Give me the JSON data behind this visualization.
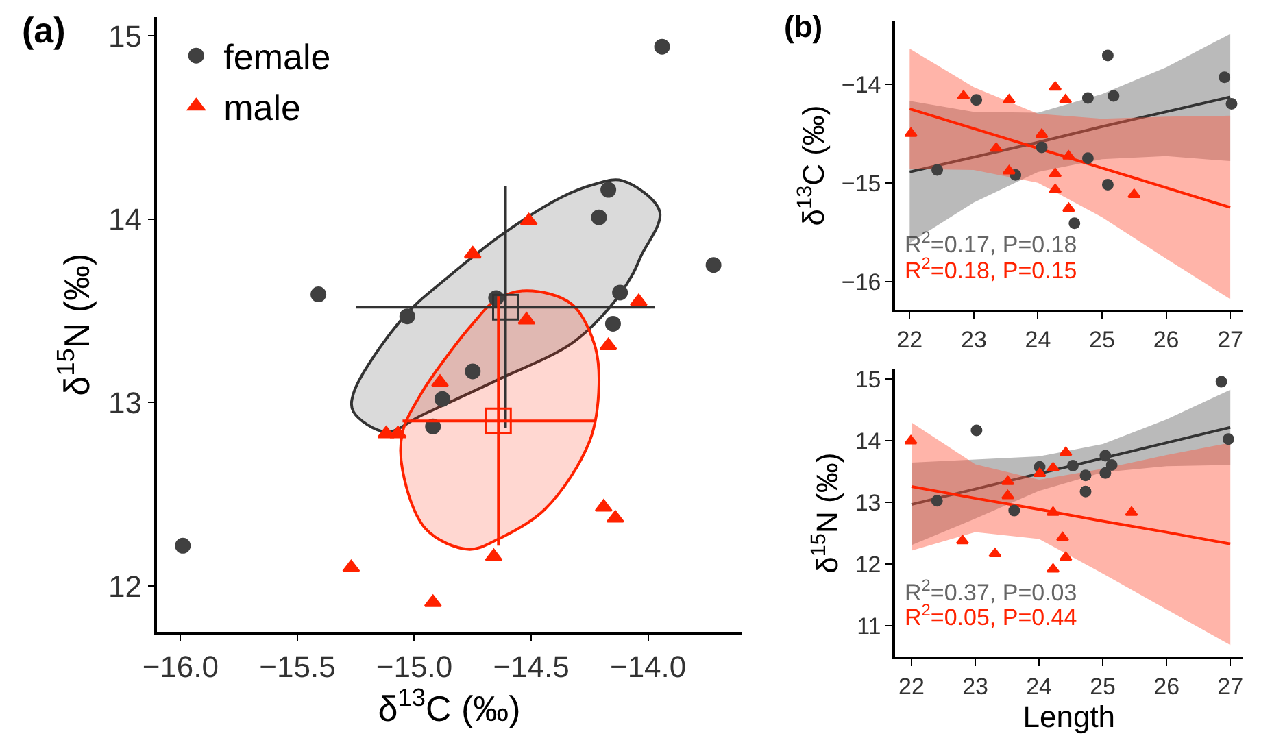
{
  "chart_data": [
    {
      "type": "scatter",
      "title": "(a)",
      "xlabel": "δ$^{13}$C (‰)",
      "ylabel": "δ$^{15}$N (‰)",
      "legend": "top left",
      "xlim": [
        -16.1,
        -13.6
      ],
      "ylim": [
        11.75,
        15.1
      ],
      "xticks": [
        {
          "value": -16,
          "label": "−16.0"
        },
        {
          "value": -15.5,
          "label": "−15.5"
        },
        {
          "value": -15,
          "label": "−15.0"
        },
        {
          "value": -14.5,
          "label": "−14.5"
        },
        {
          "value": -14,
          "label": "−14.0"
        }
      ],
      "yticks": [
        12,
        13,
        14,
        15
      ],
      "series": [
        {
          "type": "area",
          "color": "#333333",
          "x": [
            -14.11,
            -13.95,
            -14.03,
            -14.07,
            -14.17,
            -14.33,
            -14.65,
            -14.97,
            -15.12,
            -15.26,
            -15.26,
            -15.05,
            -14.85,
            -14.61,
            -14.37,
            -14.23,
            -14.11
          ],
          "values": [
            14.21,
            14.04,
            13.8,
            13.69,
            13.51,
            13.32,
            13.12,
            12.93,
            12.84,
            12.95,
            13.05,
            13.46,
            13.69,
            13.93,
            14.12,
            14.19,
            14.21
          ]
        },
        {
          "type": "area",
          "color": "#ff2200",
          "x": [
            -14.52,
            -14.33,
            -14.23,
            -14.21,
            -14.25,
            -14.44,
            -14.65,
            -14.77,
            -14.95,
            -15.05,
            -15.05,
            -14.97,
            -14.85,
            -14.75,
            -14.65,
            -14.52
          ],
          "values": [
            13.61,
            13.54,
            13.32,
            13.1,
            12.79,
            12.42,
            12.25,
            12.2,
            12.31,
            12.63,
            12.84,
            13.05,
            13.27,
            13.43,
            13.56,
            13.61
          ]
        },
        {
          "name": "female",
          "color": "#404040",
          "marker": "circle",
          "x": [
            -13.94,
            -14.17,
            -14.21,
            -13.72,
            -15.41,
            -14.12,
            -15.03,
            -14.65,
            -14.15,
            -14.75,
            -14.88,
            -14.92,
            -15.99
          ],
          "values": [
            14.94,
            14.16,
            14.01,
            13.75,
            13.59,
            13.6,
            13.47,
            13.57,
            13.43,
            13.17,
            13.02,
            12.87,
            12.22
          ]
        },
        {
          "name": "male",
          "color": "#ff2200",
          "marker": "triangle",
          "x": [
            -14.51,
            -14.75,
            -14.04,
            -14.52,
            -14.17,
            -14.89,
            -15.12,
            -15.07,
            -14.19,
            -14.14,
            -14.66,
            -15.27,
            -14.92
          ],
          "values": [
            13.99,
            13.81,
            13.55,
            13.45,
            13.31,
            13.11,
            12.83,
            12.83,
            12.43,
            12.37,
            12.16,
            12.1,
            11.91
          ]
        },
        {
          "color": "#333333",
          "marker": "square",
          "x": [
            -14.61
          ],
          "values": [
            13.52
          ],
          "errors": [
            0.66
          ],
          "xerrors": [
            0.64
          ]
        },
        {
          "color": "#ff2200",
          "marker": "square",
          "x": [
            -14.64
          ],
          "values": [
            12.9
          ],
          "errors": [
            0.68
          ],
          "xerrors": [
            0.41
          ]
        }
      ]
    },
    {
      "type": "scatter",
      "title": "(b)",
      "ylabel": "δ$^{13}$C (‰)",
      "xlim": [
        21.77,
        27.2
      ],
      "ylim": [
        -16.29,
        -13.36
      ],
      "xticks": [
        22,
        23,
        24,
        25,
        26,
        27
      ],
      "yticks": [
        {
          "value": -16,
          "label": "−16"
        },
        {
          "value": -15,
          "label": "−15"
        },
        {
          "value": -14,
          "label": "−14"
        }
      ],
      "annotations": [
        "R$^{2}$=0.17, P=0.18",
        "R$^{2}$=0.18, P=0.15"
      ],
      "series": [
        {
          "type": "line",
          "color": "#333333",
          "x": [
            22,
            23,
            24,
            25,
            26,
            27
          ],
          "values": [
            -14.89,
            -14.74,
            -14.59,
            -14.43,
            -14.28,
            -14.13
          ],
          "lower": [
            -15.61,
            -15.2,
            -14.89,
            -14.76,
            -14.73,
            -14.78
          ],
          "upper": [
            -14.17,
            -14.28,
            -14.29,
            -14.1,
            -13.83,
            -13.49
          ]
        },
        {
          "type": "line",
          "color": "#ff2200",
          "x": [
            22,
            23,
            24,
            25,
            26,
            27
          ],
          "values": [
            -14.25,
            -14.45,
            -14.65,
            -14.85,
            -15.05,
            -15.25
          ],
          "lower": [
            -14.86,
            -14.87,
            -15.0,
            -15.35,
            -15.77,
            -16.18
          ],
          "upper": [
            -13.64,
            -14.03,
            -14.3,
            -14.35,
            -14.33,
            -14.32
          ]
        },
        {
          "color": "#404040",
          "marker": "circle",
          "x": [
            22.43,
            23.04,
            23.65,
            24.06,
            24.57,
            24.78,
            24.78,
            25.09,
            25.09,
            25.18,
            26.91,
            27.02
          ],
          "values": [
            -14.87,
            -14.16,
            -14.92,
            -14.64,
            -15.41,
            -14.14,
            -14.75,
            -13.71,
            -15.02,
            -14.12,
            -13.93,
            -14.2
          ]
        },
        {
          "color": "#ff2200",
          "marker": "triangle",
          "x": [
            22.02,
            22.84,
            23.35,
            23.55,
            23.55,
            24.06,
            24.27,
            24.27,
            24.27,
            24.43,
            24.48,
            24.48,
            25.5
          ],
          "values": [
            -14.5,
            -14.12,
            -14.65,
            -14.16,
            -14.88,
            -14.51,
            -14.03,
            -14.91,
            -15.07,
            -14.16,
            -14.73,
            -15.26,
            -15.12
          ]
        }
      ]
    },
    {
      "type": "scatter",
      "xlabel": "Length",
      "ylabel": "δ$^{15}$N (‰)",
      "xlim": [
        21.74,
        27.2
      ],
      "ylim": [
        10.5,
        15.16
      ],
      "xticks": [
        22,
        23,
        24,
        25,
        26,
        27
      ],
      "yticks": [
        11,
        12,
        13,
        14,
        15
      ],
      "annotations": [
        "R$^{2}$=0.37, P=0.03",
        "R$^{2}$=0.05, P=0.44"
      ],
      "series": [
        {
          "type": "line",
          "color": "#333333",
          "x": [
            22,
            23,
            24,
            25,
            26,
            27
          ],
          "values": [
            12.97,
            13.22,
            13.47,
            13.72,
            13.97,
            14.22
          ],
          "lower": [
            12.31,
            12.74,
            13.19,
            13.49,
            13.59,
            13.61
          ],
          "upper": [
            13.65,
            13.7,
            13.75,
            13.95,
            14.35,
            14.83
          ]
        },
        {
          "type": "line",
          "color": "#ff2200",
          "x": [
            22,
            23,
            24,
            25,
            26,
            27
          ],
          "values": [
            13.26,
            13.07,
            12.89,
            12.7,
            12.52,
            12.33
          ],
          "lower": [
            12.22,
            12.52,
            12.41,
            11.85,
            11.27,
            10.69
          ],
          "upper": [
            14.3,
            13.62,
            13.37,
            13.55,
            13.77,
            13.97
          ]
        },
        {
          "color": "#404040",
          "marker": "circle",
          "x": [
            22.4,
            23.02,
            23.61,
            24.01,
            24.53,
            24.73,
            24.73,
            25.04,
            25.04,
            25.14,
            26.86,
            26.97
          ],
          "values": [
            13.03,
            14.17,
            12.87,
            13.58,
            13.6,
            13.44,
            13.18,
            13.76,
            13.48,
            13.61,
            14.96,
            14.03
          ]
        },
        {
          "color": "#ff2200",
          "marker": "triangle",
          "x": [
            21.99,
            22.8,
            23.31,
            23.51,
            23.51,
            24.01,
            24.22,
            24.22,
            24.22,
            24.37,
            24.42,
            24.42,
            25.45
          ],
          "values": [
            14.0,
            12.38,
            12.17,
            13.34,
            13.11,
            13.47,
            13.56,
            12.84,
            11.92,
            12.43,
            13.81,
            12.11,
            12.84
          ]
        }
      ]
    }
  ]
}
